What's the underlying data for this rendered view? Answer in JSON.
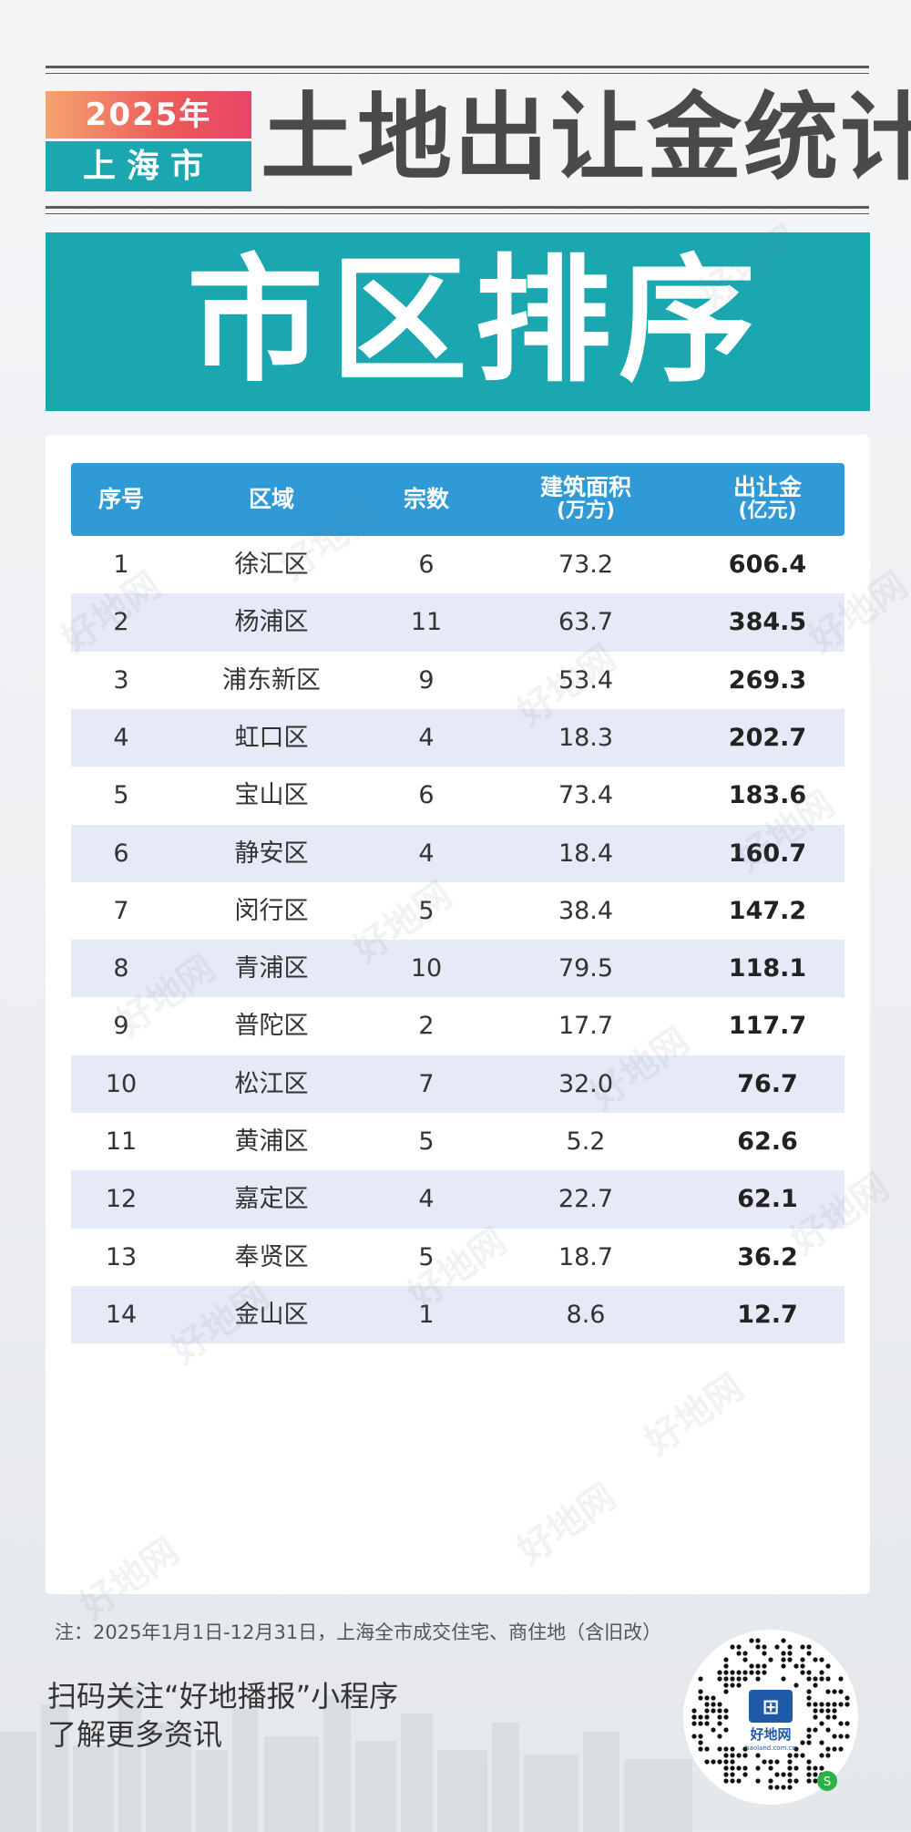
{
  "header": {
    "year_tag": "2025年",
    "city_tag": "上海市",
    "title": "土地出让金统计",
    "banner": "市区排序"
  },
  "watermark": {
    "text": "好地网"
  },
  "colors": {
    "accent_teal": "#1aa7b0",
    "header_blue": "#2f9ad6",
    "row_alt": "#e6e9f6",
    "tag_red": "#ec5a5a"
  },
  "chart_data": {
    "type": "table",
    "columns": [
      "序号",
      "区域",
      "宗数",
      "建筑面积",
      "出让金"
    ],
    "column_units": [
      "",
      "",
      "",
      "(万方)",
      "(亿元)"
    ],
    "rows": [
      [
        "1",
        "徐汇区",
        "6",
        "73.2",
        "606.4"
      ],
      [
        "2",
        "杨浦区",
        "11",
        "63.7",
        "384.5"
      ],
      [
        "3",
        "浦东新区",
        "9",
        "53.4",
        "269.3"
      ],
      [
        "4",
        "虹口区",
        "4",
        "18.3",
        "202.7"
      ],
      [
        "5",
        "宝山区",
        "6",
        "73.4",
        "183.6"
      ],
      [
        "6",
        "静安区",
        "4",
        "18.4",
        "160.7"
      ],
      [
        "7",
        "闵行区",
        "5",
        "38.4",
        "147.2"
      ],
      [
        "8",
        "青浦区",
        "10",
        "79.5",
        "118.1"
      ],
      [
        "9",
        "普陀区",
        "2",
        "17.7",
        "117.7"
      ],
      [
        "10",
        "松江区",
        "7",
        "32.0",
        "76.7"
      ],
      [
        "11",
        "黄浦区",
        "5",
        "5.2",
        "62.6"
      ],
      [
        "12",
        "嘉定区",
        "4",
        "22.7",
        "62.1"
      ],
      [
        "13",
        "奉贤区",
        "5",
        "18.7",
        "36.2"
      ],
      [
        "14",
        "金山区",
        "1",
        "8.6",
        "12.7"
      ]
    ]
  },
  "footer": {
    "note": "注：2025年1月1日-12月31日，上海全市成交住宅、商住地（含旧改）",
    "cta_line1": "扫码关注“好地播报”小程序",
    "cta_line2": "了解更多资讯",
    "qr_logo_text": "好地网",
    "qr_logo_sub": "haoland.com.cn"
  }
}
